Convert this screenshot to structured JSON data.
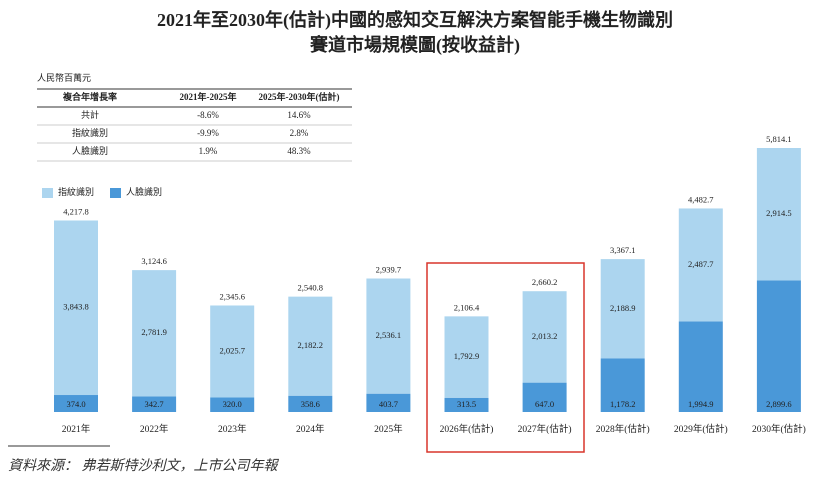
{
  "title": [
    "2021年至2030年(估計)中國的感知交互解決方案智能手機生物識別",
    "賽道市場規模圖(按收益計)"
  ],
  "table": {
    "unit": "人民幣百萬元",
    "header": [
      "複合年增長率",
      "2021年-2025年",
      "2025年-2030年(估計)"
    ],
    "rows": [
      [
        "共計",
        "-8.6%",
        "14.6%"
      ],
      [
        "指紋識別",
        "-9.9%",
        "2.8%"
      ],
      [
        "人臉識別",
        "1.9%",
        "48.3%"
      ]
    ]
  },
  "chart_data": {
    "type": "stacked_bar",
    "categories": [
      "2021年",
      "2022年",
      "2023年",
      "2024年",
      "2025年",
      "2026年(估計)",
      "2027年(估計)",
      "2028年(估計)",
      "2029年(估計)",
      "2030年(估計)"
    ],
    "series": [
      {
        "name": "人臉識別",
        "color": "#4a98d8",
        "values": [
          374.0,
          342.7,
          320.0,
          358.6,
          403.7,
          313.5,
          647.0,
          1178.2,
          1994.9,
          2899.6
        ],
        "value_labels": [
          "374.0",
          "342.7",
          "320.0",
          "358.6",
          "403.7",
          "313.5",
          "647.0",
          "1,178.2",
          "1,994.9",
          "2,899.6"
        ]
      },
      {
        "name": "指紋識別",
        "color": "#acd5ef",
        "values": [
          3843.8,
          2781.9,
          2025.7,
          2182.2,
          2536.1,
          1792.9,
          2013.2,
          2188.9,
          2487.7,
          2914.5
        ],
        "value_labels": [
          "3,843.8",
          "2,781.9",
          "2,025.7",
          "2,182.2",
          "2,536.1",
          "1,792.9",
          "2,013.2",
          "2,188.9",
          "2,487.7",
          "2,914.5"
        ]
      }
    ],
    "totals": [
      4217.8,
      3124.6,
      2345.6,
      2540.8,
      2939.7,
      2106.4,
      2660.2,
      3367.1,
      4482.7,
      5814.1
    ],
    "total_labels": [
      "4,217.8",
      "3,124.6",
      "2,345.6",
      "2,540.8",
      "2,939.7",
      "2,106.4",
      "2,660.2",
      "3,367.1",
      "4,482.7",
      "5,814.1"
    ]
  },
  "source": "資料來源：  弗若斯特沙利文，上市公司年報"
}
